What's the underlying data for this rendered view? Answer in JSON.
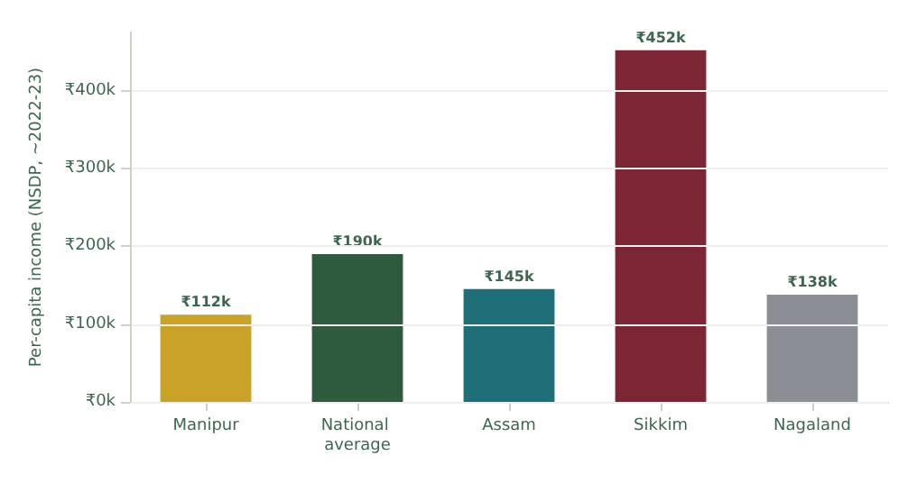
{
  "chart_data": {
    "type": "bar",
    "ylabel": "Per-capita income (NSDP, ~2022-23)",
    "categories": [
      "Manipur",
      "National average",
      "Assam",
      "Sikkim",
      "Nagaland"
    ],
    "values": [
      112000,
      190000,
      145000,
      452000,
      138000
    ],
    "colors": [
      "#c9a227",
      "#2e5b3e",
      "#1f6f78",
      "#7b2535",
      "#8b8e95"
    ],
    "value_labels": [
      "₹112k",
      "₹190k",
      "₹145k",
      "₹452k",
      "₹138k"
    ],
    "ylim": [
      0,
      475000
    ],
    "yticks": [
      {
        "value": 0,
        "label": "₹0k"
      },
      {
        "value": 100000,
        "label": "₹100k"
      },
      {
        "value": 200000,
        "label": "₹200k"
      },
      {
        "value": 300000,
        "label": "₹300k"
      },
      {
        "value": 400000,
        "label": "₹400k"
      }
    ],
    "grid": "y"
  }
}
